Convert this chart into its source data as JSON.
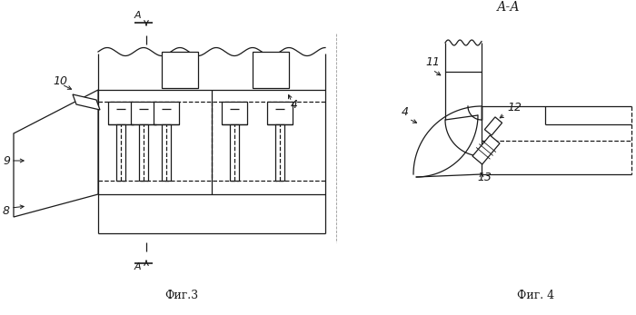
{
  "line_color": "#1a1a1a",
  "bg_color": "#ffffff",
  "fig3_caption": "Фиг.3",
  "fig4_caption": "Фиг. 4",
  "section_title": "А-А",
  "label_A": "А"
}
